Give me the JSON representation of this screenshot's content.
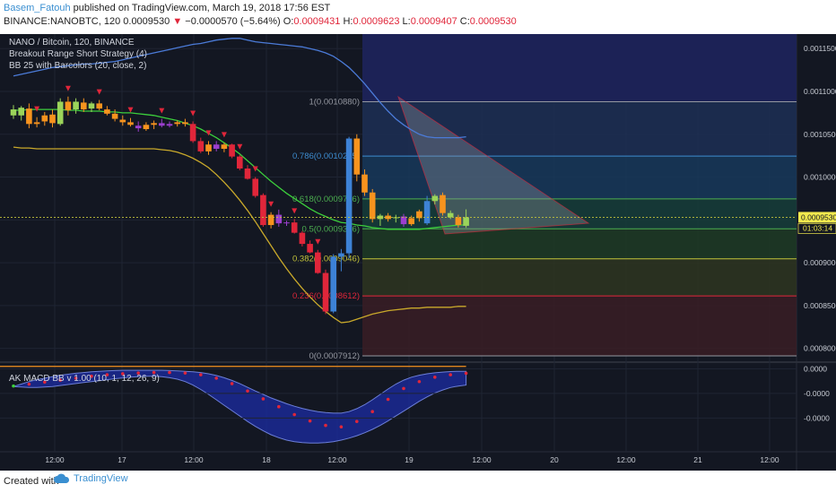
{
  "header": {
    "author": "Basem_Fatouh",
    "published": "published on TradingView.com, March 19, 2018 17:56 EST",
    "symbol_line": "BINANCE:NANOBTC, 120",
    "last": "0.0009530",
    "change_arrow": "▼",
    "change": "−0.0000570 (−5.64%)",
    "o_label": "O:",
    "o": "0.0009431",
    "h_label": "H:",
    "h": "0.0009623",
    "l_label": "L:",
    "l": "0.0009407",
    "c_label": "C:",
    "c": "0.0009530"
  },
  "legend": {
    "title": "NANO / Bitcoin, 120, BINANCE",
    "strategy": "Breakout Range Short Strategy (4)",
    "bb": "BB 25 with Barcolors (20, close, 2)",
    "macd": "AK MACD BB v 1.00 (10, 1, 12, 26, 9)"
  },
  "price_axis": {
    "ticks": [
      "0.0011500",
      "0.0011000",
      "0.0010500",
      "0.0010000",
      "0.0009500",
      "0.0009000",
      "0.0008500",
      "0.0008000"
    ],
    "current_price_label": "0.0009530",
    "countdown_label": "01:03:14"
  },
  "macd_axis": {
    "ticks": [
      "0.0000",
      "-0.0000",
      "-0.0000"
    ]
  },
  "time_axis": {
    "ticks": [
      "12:00",
      "17",
      "12:00",
      "18",
      "12:00",
      "19",
      "12:00",
      "20",
      "12:00",
      "21",
      "12:00"
    ]
  },
  "fib_levels": [
    {
      "label": "1(0.0010880)",
      "price": 0.001088,
      "color": "#9598a1"
    },
    {
      "label": "0.786(0.0010245)",
      "price": 0.0010245,
      "color": "#3d8ccf"
    },
    {
      "label": "0.618(0.0009746)",
      "price": 0.0009746,
      "color": "#4caf50"
    },
    {
      "label": "0.5(0.0009396)",
      "price": 0.0009396,
      "color": "#4caf50"
    },
    {
      "label": "0.382(0.0009046)",
      "price": 0.0009046,
      "color": "#c3c33b"
    },
    {
      "label": "0.236(0.0008612)",
      "price": 0.0008612,
      "color": "#e0263a"
    },
    {
      "label": "0(0.0007912)",
      "price": 0.0007912,
      "color": "#9598a1"
    }
  ],
  "colors": {
    "background": "#131722",
    "up_candle": "#3d82d6",
    "down_candle": "#f7931e",
    "red_candle": "#e0263a",
    "purple_candle": "#9c3fcf",
    "green_candle": "#9bd45a",
    "bb_basis": "#3ccf3c",
    "bb_upper": "#4b7bd8",
    "bb_lower": "#c9a92b",
    "signal_marker": "#e0263a"
  },
  "chart_data": {
    "type": "candlestick",
    "timeframe_minutes": 120,
    "start": "2018-03-16 04:00",
    "y_range": [
      0.000786,
      0.001167
    ],
    "candles": [
      {
        "o": 0.001079,
        "h": 0.001084,
        "l": 0.001068,
        "c": 0.001072,
        "color": "green"
      },
      {
        "o": 0.001072,
        "h": 0.001083,
        "l": 0.001066,
        "c": 0.001081,
        "color": "green"
      },
      {
        "o": 0.00108,
        "h": 0.001086,
        "l": 0.001057,
        "c": 0.001062,
        "color": "orange"
      },
      {
        "o": 0.001062,
        "h": 0.00107,
        "l": 0.001058,
        "c": 0.001064,
        "color": "orange"
      },
      {
        "o": 0.001065,
        "h": 0.001076,
        "l": 0.00106,
        "c": 0.001072,
        "color": "orange"
      },
      {
        "o": 0.001073,
        "h": 0.001079,
        "l": 0.001058,
        "c": 0.001063,
        "color": "orange"
      },
      {
        "o": 0.001062,
        "h": 0.001092,
        "l": 0.00106,
        "c": 0.001088,
        "color": "green"
      },
      {
        "o": 0.001088,
        "h": 0.001094,
        "l": 0.001072,
        "c": 0.001078,
        "color": "orange"
      },
      {
        "o": 0.001079,
        "h": 0.001092,
        "l": 0.001074,
        "c": 0.001088,
        "color": "green"
      },
      {
        "o": 0.001087,
        "h": 0.001092,
        "l": 0.001076,
        "c": 0.001079,
        "color": "orange"
      },
      {
        "o": 0.00108,
        "h": 0.001088,
        "l": 0.001076,
        "c": 0.001086,
        "color": "green"
      },
      {
        "o": 0.001086,
        "h": 0.00109,
        "l": 0.001078,
        "c": 0.00108,
        "color": "orange"
      },
      {
        "o": 0.001079,
        "h": 0.001083,
        "l": 0.001072,
        "c": 0.001074,
        "color": "orange"
      },
      {
        "o": 0.001074,
        "h": 0.001079,
        "l": 0.001065,
        "c": 0.001068,
        "color": "orange"
      },
      {
        "o": 0.001067,
        "h": 0.001072,
        "l": 0.00106,
        "c": 0.001064,
        "color": "orange"
      },
      {
        "o": 0.001064,
        "h": 0.001069,
        "l": 0.001059,
        "c": 0.001061,
        "color": "orange"
      },
      {
        "o": 0.00106,
        "h": 0.001065,
        "l": 0.001053,
        "c": 0.001057,
        "color": "purple"
      },
      {
        "o": 0.001056,
        "h": 0.001064,
        "l": 0.001054,
        "c": 0.001061,
        "color": "orange"
      },
      {
        "o": 0.001061,
        "h": 0.001066,
        "l": 0.001056,
        "c": 0.001063,
        "color": "orange"
      },
      {
        "o": 0.001063,
        "h": 0.001068,
        "l": 0.001058,
        "c": 0.00106,
        "color": "purple"
      },
      {
        "o": 0.00106,
        "h": 0.001065,
        "l": 0.001058,
        "c": 0.001062,
        "color": "purple"
      },
      {
        "o": 0.001062,
        "h": 0.001066,
        "l": 0.001059,
        "c": 0.001064,
        "color": "orange"
      },
      {
        "o": 0.001064,
        "h": 0.001068,
        "l": 0.001059,
        "c": 0.001062,
        "color": "orange"
      },
      {
        "o": 0.001062,
        "h": 0.001065,
        "l": 0.00104,
        "c": 0.001042,
        "color": "red"
      },
      {
        "o": 0.001042,
        "h": 0.001046,
        "l": 0.001028,
        "c": 0.00103,
        "color": "red"
      },
      {
        "o": 0.00103,
        "h": 0.001042,
        "l": 0.001026,
        "c": 0.001038,
        "color": "orange"
      },
      {
        "o": 0.001038,
        "h": 0.001042,
        "l": 0.00103,
        "c": 0.001033,
        "color": "purple"
      },
      {
        "o": 0.001033,
        "h": 0.00104,
        "l": 0.001029,
        "c": 0.001038,
        "color": "orange"
      },
      {
        "o": 0.001038,
        "h": 0.001039,
        "l": 0.001022,
        "c": 0.001024,
        "color": "red"
      },
      {
        "o": 0.001024,
        "h": 0.001026,
        "l": 0.001008,
        "c": 0.00101,
        "color": "red"
      },
      {
        "o": 0.00101,
        "h": 0.001014,
        "l": 0.000997,
        "c": 0.000998,
        "color": "red"
      },
      {
        "o": 0.000998,
        "h": 0.001,
        "l": 0.000976,
        "c": 0.000978,
        "color": "red"
      },
      {
        "o": 0.000979,
        "h": 0.000981,
        "l": 0.000942,
        "c": 0.000944,
        "color": "red"
      },
      {
        "o": 0.000944,
        "h": 0.000959,
        "l": 0.00094,
        "c": 0.000956,
        "color": "orange"
      },
      {
        "o": 0.000956,
        "h": 0.000962,
        "l": 0.000942,
        "c": 0.000946,
        "color": "purple"
      },
      {
        "o": 0.000946,
        "h": 0.000949,
        "l": 0.000943,
        "c": 0.000947,
        "color": "purple"
      },
      {
        "o": 0.000947,
        "h": 0.000951,
        "l": 0.000934,
        "c": 0.000935,
        "color": "red"
      },
      {
        "o": 0.000935,
        "h": 0.000937,
        "l": 0.000919,
        "c": 0.000922,
        "color": "red"
      },
      {
        "o": 0.000922,
        "h": 0.000926,
        "l": 0.000911,
        "c": 0.000912,
        "color": "red"
      },
      {
        "o": 0.000912,
        "h": 0.000915,
        "l": 0.000887,
        "c": 0.000888,
        "color": "red"
      },
      {
        "o": 0.000888,
        "h": 0.000892,
        "l": 0.00084,
        "c": 0.000843,
        "color": "red"
      },
      {
        "o": 0.000843,
        "h": 0.00091,
        "l": 0.000841,
        "c": 0.000907,
        "color": "blue"
      },
      {
        "o": 0.000907,
        "h": 0.000916,
        "l": 0.00089,
        "c": 0.000911,
        "color": "blue"
      },
      {
        "o": 0.000911,
        "h": 0.001047,
        "l": 0.000905,
        "c": 0.001045,
        "color": "blue"
      },
      {
        "o": 0.001045,
        "h": 0.00105,
        "l": 0.000995,
        "c": 0.001003,
        "color": "orange"
      },
      {
        "o": 0.001003,
        "h": 0.001009,
        "l": 0.000978,
        "c": 0.000982,
        "color": "orange"
      },
      {
        "o": 0.000982,
        "h": 0.000986,
        "l": 0.000947,
        "c": 0.000951,
        "color": "orange"
      },
      {
        "o": 0.000951,
        "h": 0.000957,
        "l": 0.000943,
        "c": 0.000955,
        "color": "green"
      },
      {
        "o": 0.000955,
        "h": 0.000958,
        "l": 0.000948,
        "c": 0.000951,
        "color": "orange"
      },
      {
        "o": 0.000952,
        "h": 0.000956,
        "l": 0.000947,
        "c": 0.000953,
        "color": "green"
      },
      {
        "o": 0.000954,
        "h": 0.000957,
        "l": 0.000942,
        "c": 0.000945,
        "color": "purple"
      },
      {
        "o": 0.000945,
        "h": 0.000955,
        "l": 0.000943,
        "c": 0.000952,
        "color": "orange"
      },
      {
        "o": 0.000952,
        "h": 0.000962,
        "l": 0.000948,
        "c": 0.00096,
        "color": "orange"
      },
      {
        "o": 0.000946,
        "h": 0.000978,
        "l": 0.000944,
        "c": 0.000972,
        "color": "blue"
      },
      {
        "o": 0.000972,
        "h": 0.00098,
        "l": 0.000968,
        "c": 0.000978,
        "color": "green"
      },
      {
        "o": 0.000979,
        "h": 0.000982,
        "l": 0.000955,
        "c": 0.000958,
        "color": "orange"
      },
      {
        "o": 0.000958,
        "h": 0.000961,
        "l": 0.000951,
        "c": 0.000953,
        "color": "green"
      },
      {
        "o": 0.000953,
        "h": 0.000956,
        "l": 0.000941,
        "c": 0.000944,
        "color": "orange"
      },
      {
        "o": 0.0009431,
        "h": 0.0009623,
        "l": 0.0009407,
        "c": 0.000953,
        "color": "green"
      }
    ],
    "bb_upper": [
      0.001118,
      0.00112,
      0.001122,
      0.001124,
      0.001126,
      0.001128,
      0.001129,
      0.00113,
      0.001131,
      0.001132,
      0.001132,
      0.001133,
      0.001134,
      0.001135,
      0.001137,
      0.001139,
      0.001141,
      0.001143,
      0.001145,
      0.001147,
      0.001149,
      0.001151,
      0.001153,
      0.001155,
      0.001156,
      0.001158,
      0.00116,
      0.001161,
      0.001162,
      0.001162,
      0.00116,
      0.001158,
      0.001157,
      0.001156,
      0.001155,
      0.001154,
      0.001153,
      0.001152,
      0.00115,
      0.001148,
      0.001145,
      0.001141,
      0.001135,
      0.001128,
      0.001119,
      0.001109,
      0.001098,
      0.001087,
      0.001077,
      0.001068,
      0.001061,
      0.001055,
      0.00105,
      0.001047,
      0.001046,
      0.001046,
      0.001046,
      0.001046,
      0.001047
    ],
    "bb_basis": [
      0.001078,
      0.001078,
      0.001079,
      0.001079,
      0.001079,
      0.001079,
      0.001079,
      0.001078,
      0.001078,
      0.001077,
      0.001077,
      0.001077,
      0.001076,
      0.001076,
      0.001075,
      0.001075,
      0.001074,
      0.001073,
      0.001072,
      0.00107,
      0.001068,
      0.001066,
      0.001063,
      0.00106,
      0.001056,
      0.001051,
      0.001046,
      0.00104,
      0.001034,
      0.001027,
      0.001019,
      0.001011,
      0.001003,
      0.000995,
      0.000988,
      0.000981,
      0.000975,
      0.000969,
      0.000963,
      0.000958,
      0.000954,
      0.00095,
      0.000947,
      0.000946,
      0.000944,
      0.000943,
      0.000941,
      0.00094,
      0.000939,
      0.000939,
      0.000939,
      0.000939,
      0.000939,
      0.00094,
      0.000941,
      0.000942,
      0.000943,
      0.000944,
      0.000944
    ],
    "bb_lower": [
      0.001035,
      0.001034,
      0.001034,
      0.001033,
      0.001033,
      0.001033,
      0.001033,
      0.001033,
      0.001033,
      0.001033,
      0.001033,
      0.001033,
      0.001033,
      0.001033,
      0.001033,
      0.001033,
      0.001033,
      0.001033,
      0.001033,
      0.001032,
      0.001031,
      0.001029,
      0.001026,
      0.001022,
      0.001017,
      0.001011,
      0.001003,
      0.000994,
      0.000984,
      0.000973,
      0.000961,
      0.000948,
      0.000934,
      0.00092,
      0.000906,
      0.000893,
      0.000881,
      0.00087,
      0.00086,
      0.000851,
      0.000843,
      0.000836,
      0.00083,
      0.000831,
      0.000834,
      0.000837,
      0.00084,
      0.000842,
      0.000844,
      0.000845,
      0.000846,
      0.000847,
      0.000847,
      0.000848,
      0.000848,
      0.000848,
      0.000848,
      0.000849,
      0.000849
    ],
    "short_signal_bars": [
      3,
      7,
      11,
      15,
      19,
      23,
      25,
      27,
      29,
      31,
      33,
      36,
      39
    ],
    "macd_line": [
      -0.7,
      -0.66,
      -0.62,
      -0.58,
      -0.54,
      -0.5,
      -0.46,
      -0.42,
      -0.38,
      -0.34,
      -0.3,
      -0.27,
      -0.24,
      -0.22,
      -0.2,
      -0.18,
      -0.17,
      -0.16,
      -0.15,
      -0.15,
      -0.15,
      -0.16,
      -0.17,
      -0.2,
      -0.24,
      -0.3,
      -0.38,
      -0.48,
      -0.6,
      -0.74,
      -0.9,
      -1.06,
      -1.22,
      -1.38,
      -1.54,
      -1.7,
      -1.86,
      -2.0,
      -2.12,
      -2.22,
      -2.3,
      -2.34,
      -2.36,
      -2.28,
      -2.14,
      -1.96,
      -1.74,
      -1.5,
      -1.24,
      -1.0,
      -0.8,
      -0.64,
      -0.52,
      -0.42,
      -0.34,
      -0.28,
      -0.24,
      -0.21,
      -0.18
    ],
    "macd_band_upper": [
      -0.72,
      -0.62,
      -0.52,
      -0.44,
      -0.38,
      -0.32,
      -0.26,
      -0.22,
      -0.18,
      -0.15,
      -0.12,
      -0.1,
      -0.08,
      -0.07,
      -0.06,
      -0.06,
      -0.06,
      -0.06,
      -0.06,
      -0.06,
      -0.07,
      -0.08,
      -0.1,
      -0.12,
      -0.15,
      -0.2,
      -0.27,
      -0.36,
      -0.47,
      -0.6,
      -0.75,
      -0.9,
      -1.04,
      -1.18,
      -1.3,
      -1.42,
      -1.52,
      -1.61,
      -1.68,
      -1.74,
      -1.78,
      -1.8,
      -1.8,
      -1.74,
      -1.62,
      -1.46,
      -1.26,
      -1.04,
      -0.82,
      -0.62,
      -0.46,
      -0.34,
      -0.26,
      -0.2,
      -0.16,
      -0.13,
      -0.11,
      -0.1,
      -0.1
    ],
    "macd_band_lower": [
      -0.72,
      -0.74,
      -0.76,
      -0.76,
      -0.74,
      -0.72,
      -0.68,
      -0.64,
      -0.6,
      -0.56,
      -0.52,
      -0.48,
      -0.44,
      -0.4,
      -0.37,
      -0.34,
      -0.32,
      -0.3,
      -0.3,
      -0.32,
      -0.36,
      -0.42,
      -0.52,
      -0.66,
      -0.84,
      -1.04,
      -1.26,
      -1.48,
      -1.7,
      -1.92,
      -2.14,
      -2.34,
      -2.52,
      -2.68,
      -2.8,
      -2.9,
      -2.96,
      -3.0,
      -3.02,
      -3.02,
      -3.0,
      -2.96,
      -2.9,
      -2.82,
      -2.72,
      -2.6,
      -2.46,
      -2.3,
      -2.12,
      -1.92,
      -1.72,
      -1.52,
      -1.32,
      -1.14,
      -0.98,
      -0.86,
      -0.76,
      -0.7,
      -0.66
    ],
    "macd_y_range": [
      -3.3,
      0.2
    ]
  }
}
